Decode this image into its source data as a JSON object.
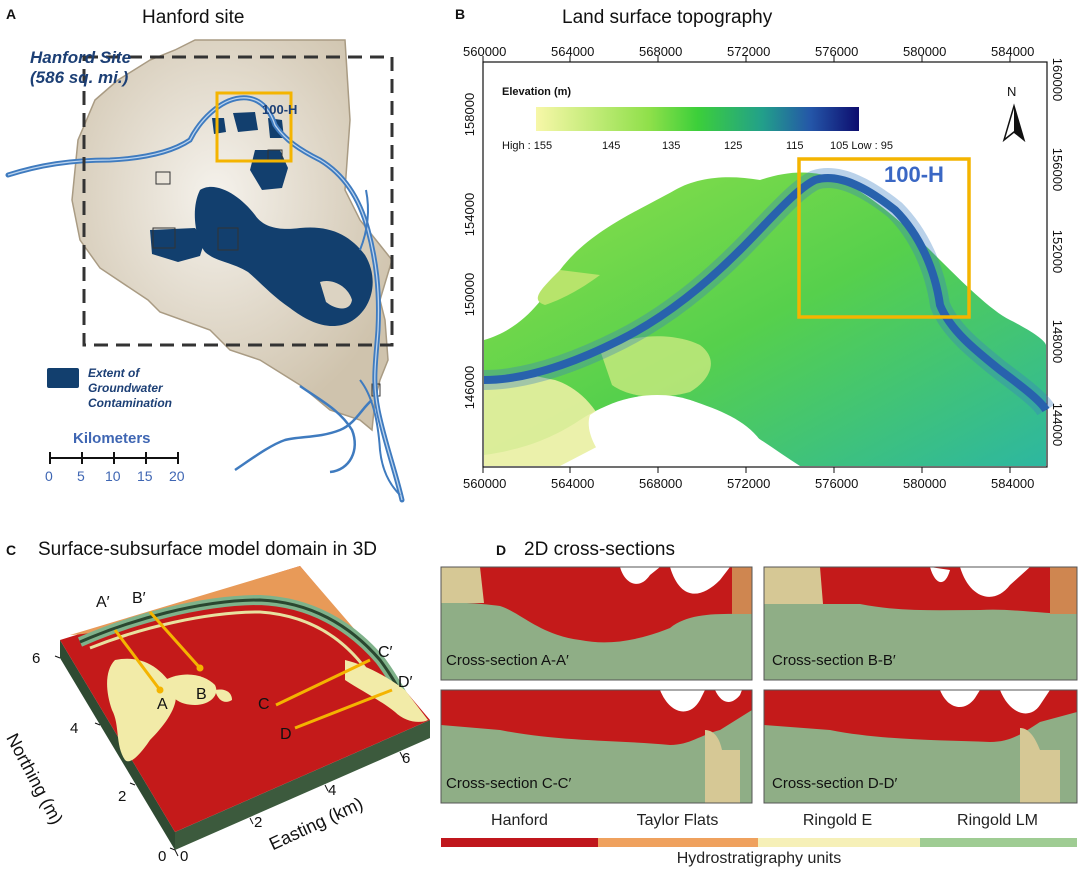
{
  "panels": {
    "a": {
      "letter": "A",
      "title": "Hanford site",
      "site_name": "Hanford Site",
      "site_area": "(586 sq. mi.)",
      "area_label": "100-H",
      "legend_text": [
        "Extent of",
        "Groundwater",
        "Contamination"
      ],
      "scale_title": "Kilometers",
      "scale_ticks": [
        "0",
        "5",
        "10",
        "15",
        "20"
      ],
      "colors": {
        "site": "#dcd3c2",
        "contamination": "#123f6e",
        "river": "#3f7bbf",
        "highlight": "#f4b400"
      }
    },
    "b": {
      "letter": "B",
      "title": "Land surface topography",
      "x_ticks": [
        "560000",
        "564000",
        "568000",
        "572000",
        "576000",
        "580000",
        "584000"
      ],
      "y_ticks_left": [
        "158000",
        "154000",
        "150000",
        "146000"
      ],
      "y_ticks_right": [
        "160000",
        "156000",
        "152000",
        "148000",
        "144000"
      ],
      "colorbar_title": "Elevation (m)",
      "colorbar_labels": [
        "High : 155",
        "145",
        "135",
        "125",
        "115",
        "105 Low : 95"
      ],
      "north_label": "N",
      "area_label": "100-H"
    },
    "c": {
      "letter": "C",
      "title": "Surface-subsurface model domain in 3D",
      "section_labels": [
        "A′",
        "B′",
        "C′",
        "D′",
        "A",
        "B",
        "C",
        "D"
      ],
      "y_axis_label": "Northing (m)",
      "x_axis_label": "Easting (km)",
      "y_ticks": [
        "6",
        "4",
        "2",
        "0"
      ],
      "x_ticks": [
        "0",
        "2",
        "4",
        "6"
      ]
    },
    "d": {
      "letter": "D",
      "title": "2D cross-sections",
      "sections": [
        "Cross-section A-A′",
        "Cross-section B-B′",
        "Cross-section C-C′",
        "Cross-section D-D′"
      ],
      "legend": [
        {
          "name": "Hanford",
          "color": "#c0171d"
        },
        {
          "name": "Taylor Flats",
          "color": "#efa15e"
        },
        {
          "name": "Ringold E",
          "color": "#f6f0b8"
        },
        {
          "name": "Ringold LM",
          "color": "#9fcc93"
        }
      ],
      "legend_title": "Hydrostratigraphy units"
    }
  }
}
